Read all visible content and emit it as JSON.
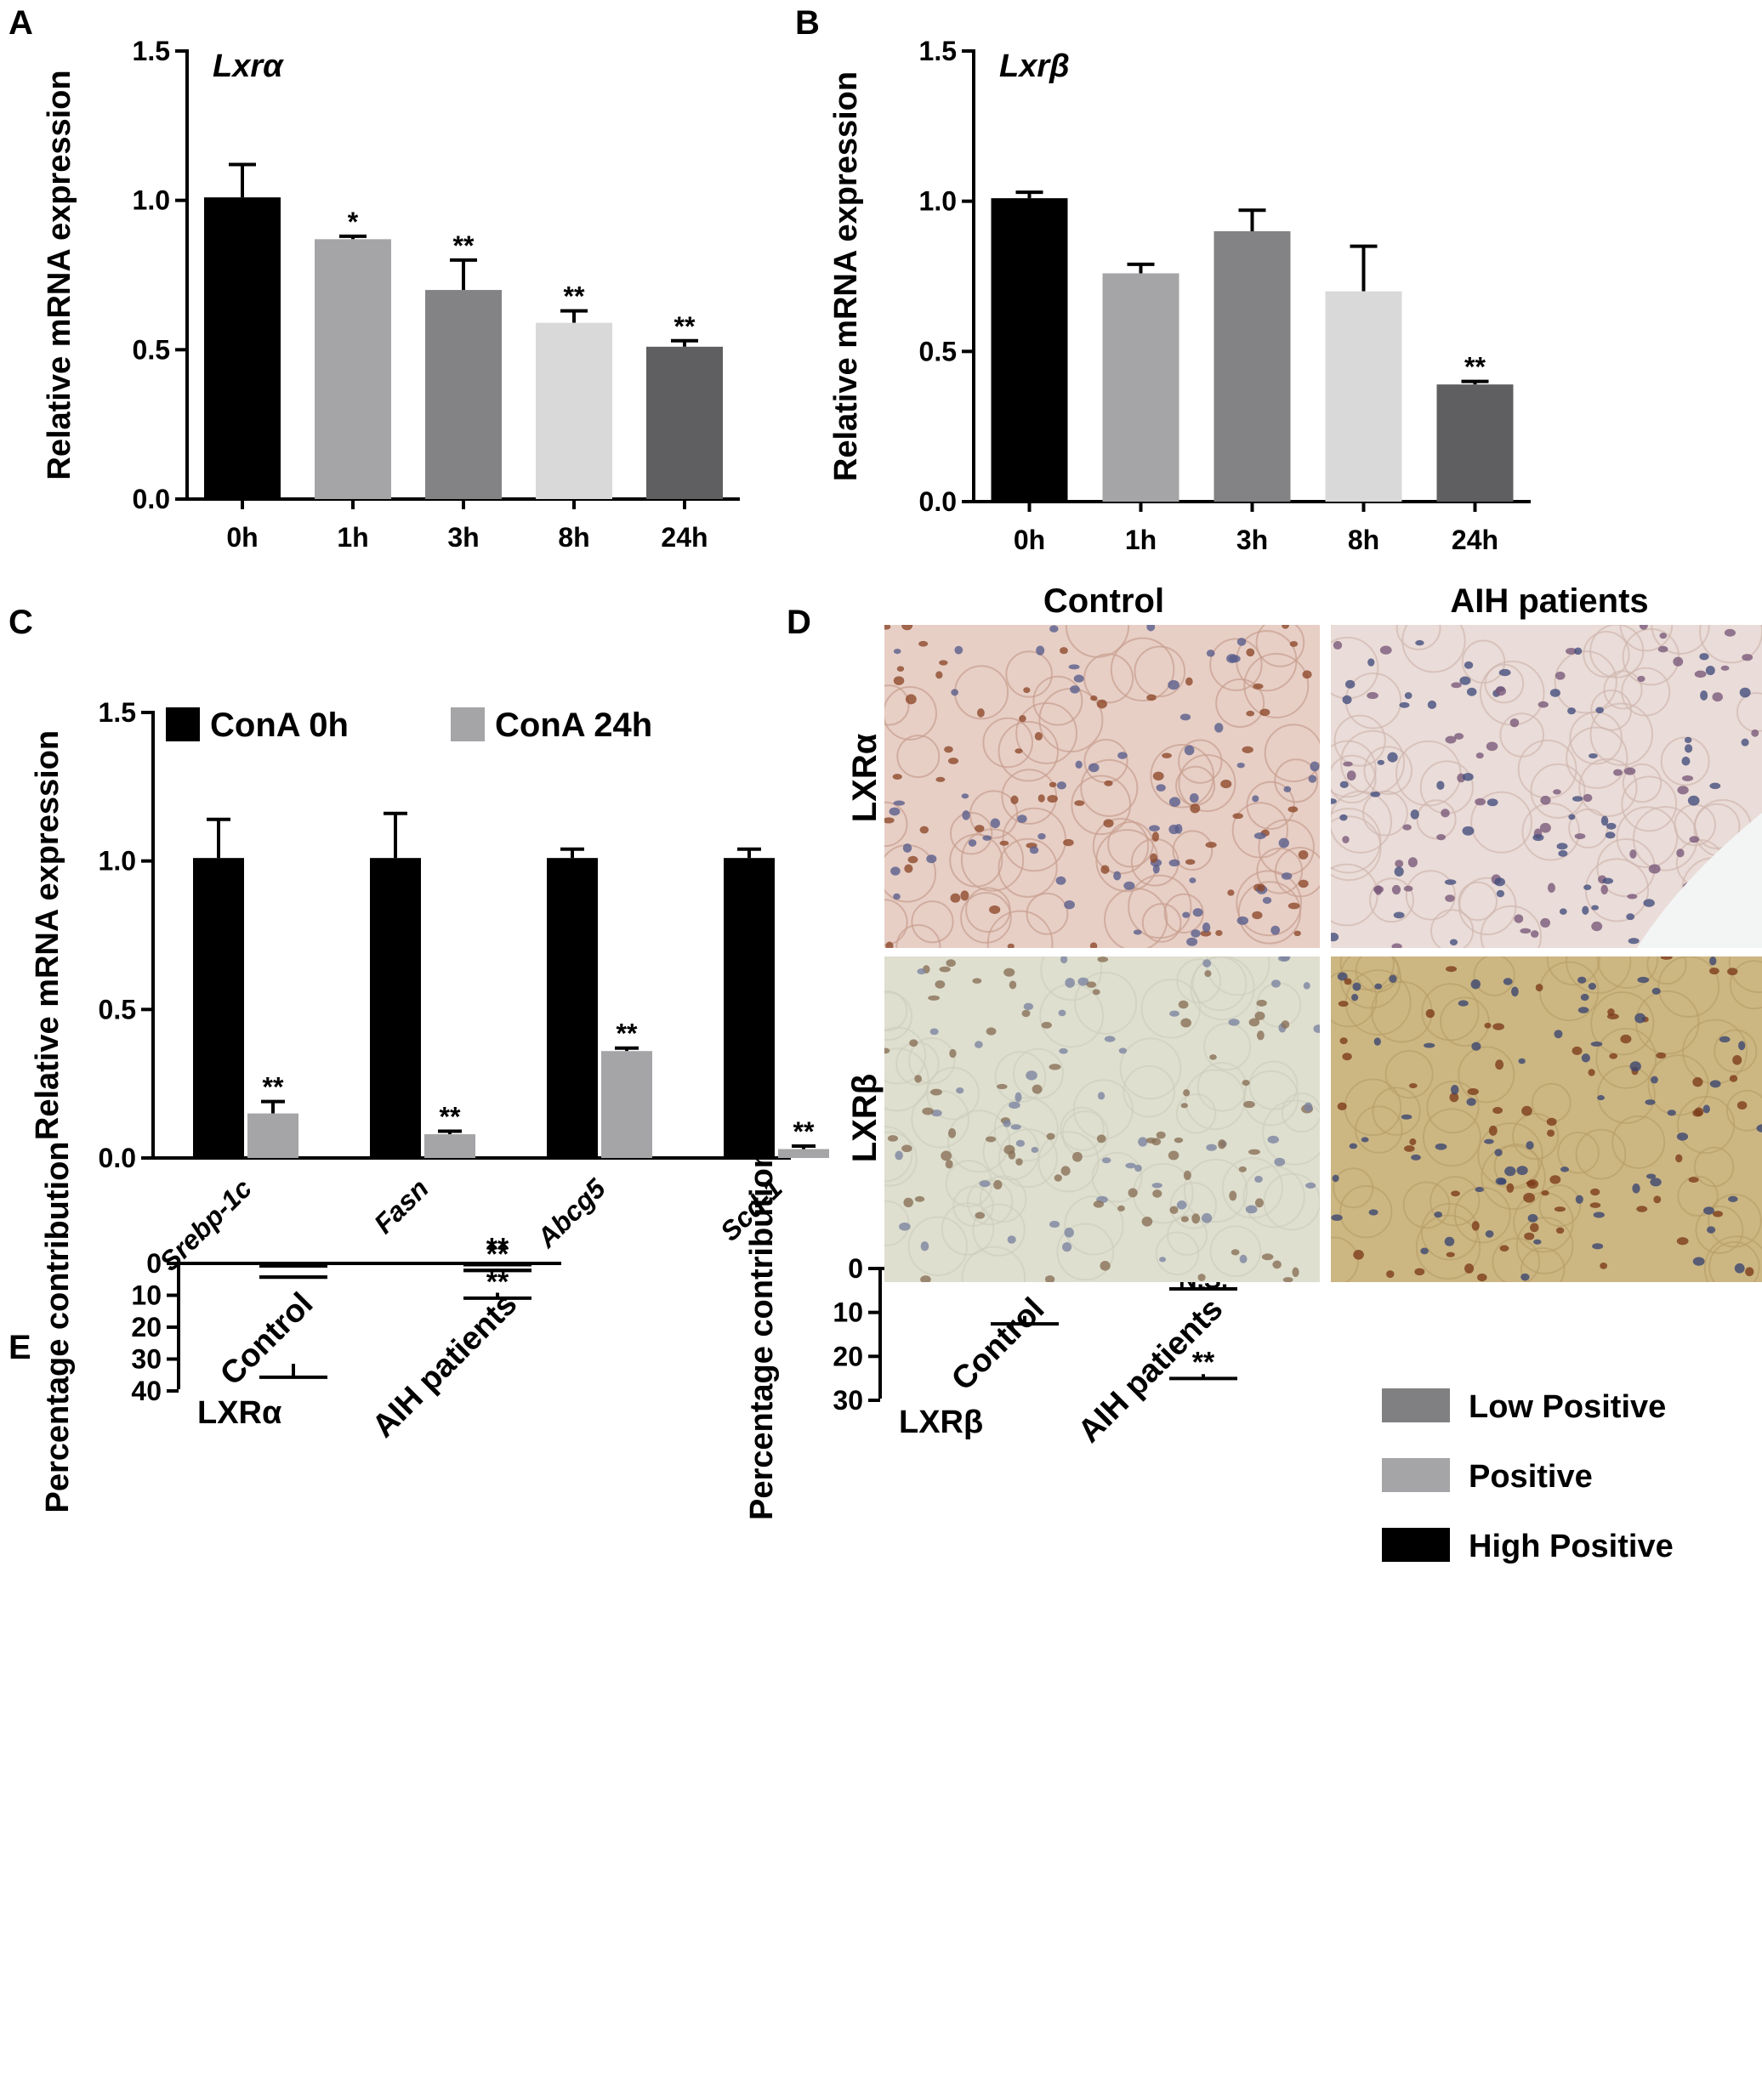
{
  "panel_letters": [
    "A",
    "B",
    "C",
    "D",
    "E"
  ],
  "chart_data": [
    {
      "panel": "A",
      "type": "bar",
      "title": "Lxrα",
      "ylabel": "Relative mRNA expression",
      "ylim": [
        0,
        1.5
      ],
      "yticks": [
        "0.0",
        "0.5",
        "1.0",
        "1.5"
      ],
      "categories": [
        "0h",
        "1h",
        "3h",
        "8h",
        "24h"
      ],
      "values": [
        1.01,
        0.87,
        0.7,
        0.59,
        0.51
      ],
      "errors": [
        0.11,
        0.01,
        0.1,
        0.04,
        0.02
      ],
      "annotations": [
        "",
        "*",
        "**",
        "**",
        "**"
      ],
      "colors": [
        "#000000",
        "#a5a5a8",
        "#838385",
        "#d9d9d9",
        "#5f5f61"
      ]
    },
    {
      "panel": "B",
      "type": "bar",
      "title": "Lxrβ",
      "ylabel": "Relative mRNA expression",
      "ylim": [
        0,
        1.5
      ],
      "yticks": [
        "0.0",
        "0.5",
        "1.0",
        "1.5"
      ],
      "categories": [
        "0h",
        "1h",
        "3h",
        "8h",
        "24h"
      ],
      "values": [
        1.01,
        0.76,
        0.9,
        0.7,
        0.39
      ],
      "errors": [
        0.02,
        0.03,
        0.07,
        0.15,
        0.01
      ],
      "annotations": [
        "",
        "",
        "",
        "",
        "**"
      ],
      "colors": [
        "#000000",
        "#a5a5a8",
        "#838385",
        "#d9d9d9",
        "#5f5f61"
      ]
    },
    {
      "panel": "C",
      "type": "bar",
      "ylabel": "Relative mRNA expression",
      "ylim": [
        0,
        1.5
      ],
      "yticks": [
        "0.0",
        "0.5",
        "1.0",
        "1.5"
      ],
      "categories": [
        "Srebp-1c",
        "Fasn",
        "Abcg5",
        "Scd-1"
      ],
      "legend_position": "top",
      "series": [
        {
          "name": "ConA 0h",
          "color": "#000000",
          "values": [
            1.01,
            1.01,
            1.01,
            1.01
          ],
          "errors": [
            0.13,
            0.15,
            0.03,
            0.03
          ],
          "annotations": [
            "",
            "",
            "",
            ""
          ]
        },
        {
          "name": "ConA 24h",
          "color": "#a5a5a8",
          "values": [
            0.15,
            0.08,
            0.36,
            0.03
          ],
          "errors": [
            0.04,
            0.01,
            0.01,
            0.01
          ],
          "annotations": [
            "**",
            "**",
            "**",
            "**"
          ]
        }
      ]
    },
    {
      "panel": "E-left",
      "type": "bar",
      "stacked": true,
      "title": "LXRα",
      "ylabel": "Percentage contribution",
      "ylim": [
        0,
        40
      ],
      "yticks": [
        "0",
        "10",
        "20",
        "30",
        "40"
      ],
      "categories": [
        "Control",
        "AIH patients"
      ],
      "series": [
        {
          "name": "High Positive",
          "color": "#000000",
          "values": [
            0.5,
            0.2
          ],
          "errors": [
            0.3,
            0.2
          ],
          "annotations": [
            "",
            "**"
          ]
        },
        {
          "name": "Positive",
          "color": "#a5a5a8",
          "values": [
            3.5,
            1.5
          ],
          "errors": [
            0.3,
            0.5
          ],
          "annotations": [
            "",
            "**"
          ]
        },
        {
          "name": "Low Positive",
          "color": "#808082",
          "values": [
            27.5,
            7.5
          ],
          "errors": [
            4.2,
            1.7
          ],
          "annotations": [
            "",
            "**"
          ]
        }
      ]
    },
    {
      "panel": "E-right",
      "type": "bar",
      "stacked": true,
      "title": "LXRβ",
      "ylabel": "Percentage contribution",
      "ylim": [
        0,
        30
      ],
      "yticks": [
        "0",
        "10",
        "20",
        "30"
      ],
      "categories": [
        "Control",
        "AIH patients"
      ],
      "legend_position": "right",
      "legend": [
        "Low Positive",
        "Positive",
        "High Positive"
      ],
      "series": [
        {
          "name": "High Positive",
          "color": "#000000",
          "values": [
            0.1,
            0.05
          ],
          "errors": [
            0.0,
            0.0
          ],
          "annotations": [
            "",
            ""
          ]
        },
        {
          "name": "Positive",
          "color": "#a5a5a8",
          "values": [
            0.4,
            4.1
          ],
          "errors": [
            0.2,
            0.5
          ],
          "annotations": [
            "",
            "**"
          ]
        },
        {
          "name": "Low Positive",
          "color": "#808082",
          "values": [
            10.3,
            19.9
          ],
          "errors": [
            1.8,
            1.0
          ],
          "annotations": [
            "",
            "**"
          ]
        }
      ],
      "inner_labels": [
        {
          "category": "AIH patients",
          "text": "N.S."
        }
      ]
    }
  ],
  "micrographs": {
    "col_headers": [
      "Control",
      "AIH patients"
    ],
    "row_labels": [
      "LXRα",
      "LXRβ"
    ],
    "tiles": [
      {
        "row": 0,
        "col": 0,
        "base": "#e7cfc6",
        "nuclei": "#8e4a2c",
        "blue": "#5a5e8c",
        "lines": "#c79e8f"
      },
      {
        "row": 0,
        "col": 1,
        "base": "#eadcd8",
        "nuclei": "#7a5a7a",
        "blue": "#454f7e",
        "lines": "#d0b8b0"
      },
      {
        "row": 1,
        "col": 0,
        "base": "#dedfcf",
        "nuclei": "#8a7058",
        "blue": "#7d84a0",
        "lines": "#cfcfbd"
      },
      {
        "row": 1,
        "col": 1,
        "base": "#ccb783",
        "nuclei": "#7d3c1c",
        "blue": "#3c4670",
        "lines": "#b9a06a"
      }
    ]
  }
}
